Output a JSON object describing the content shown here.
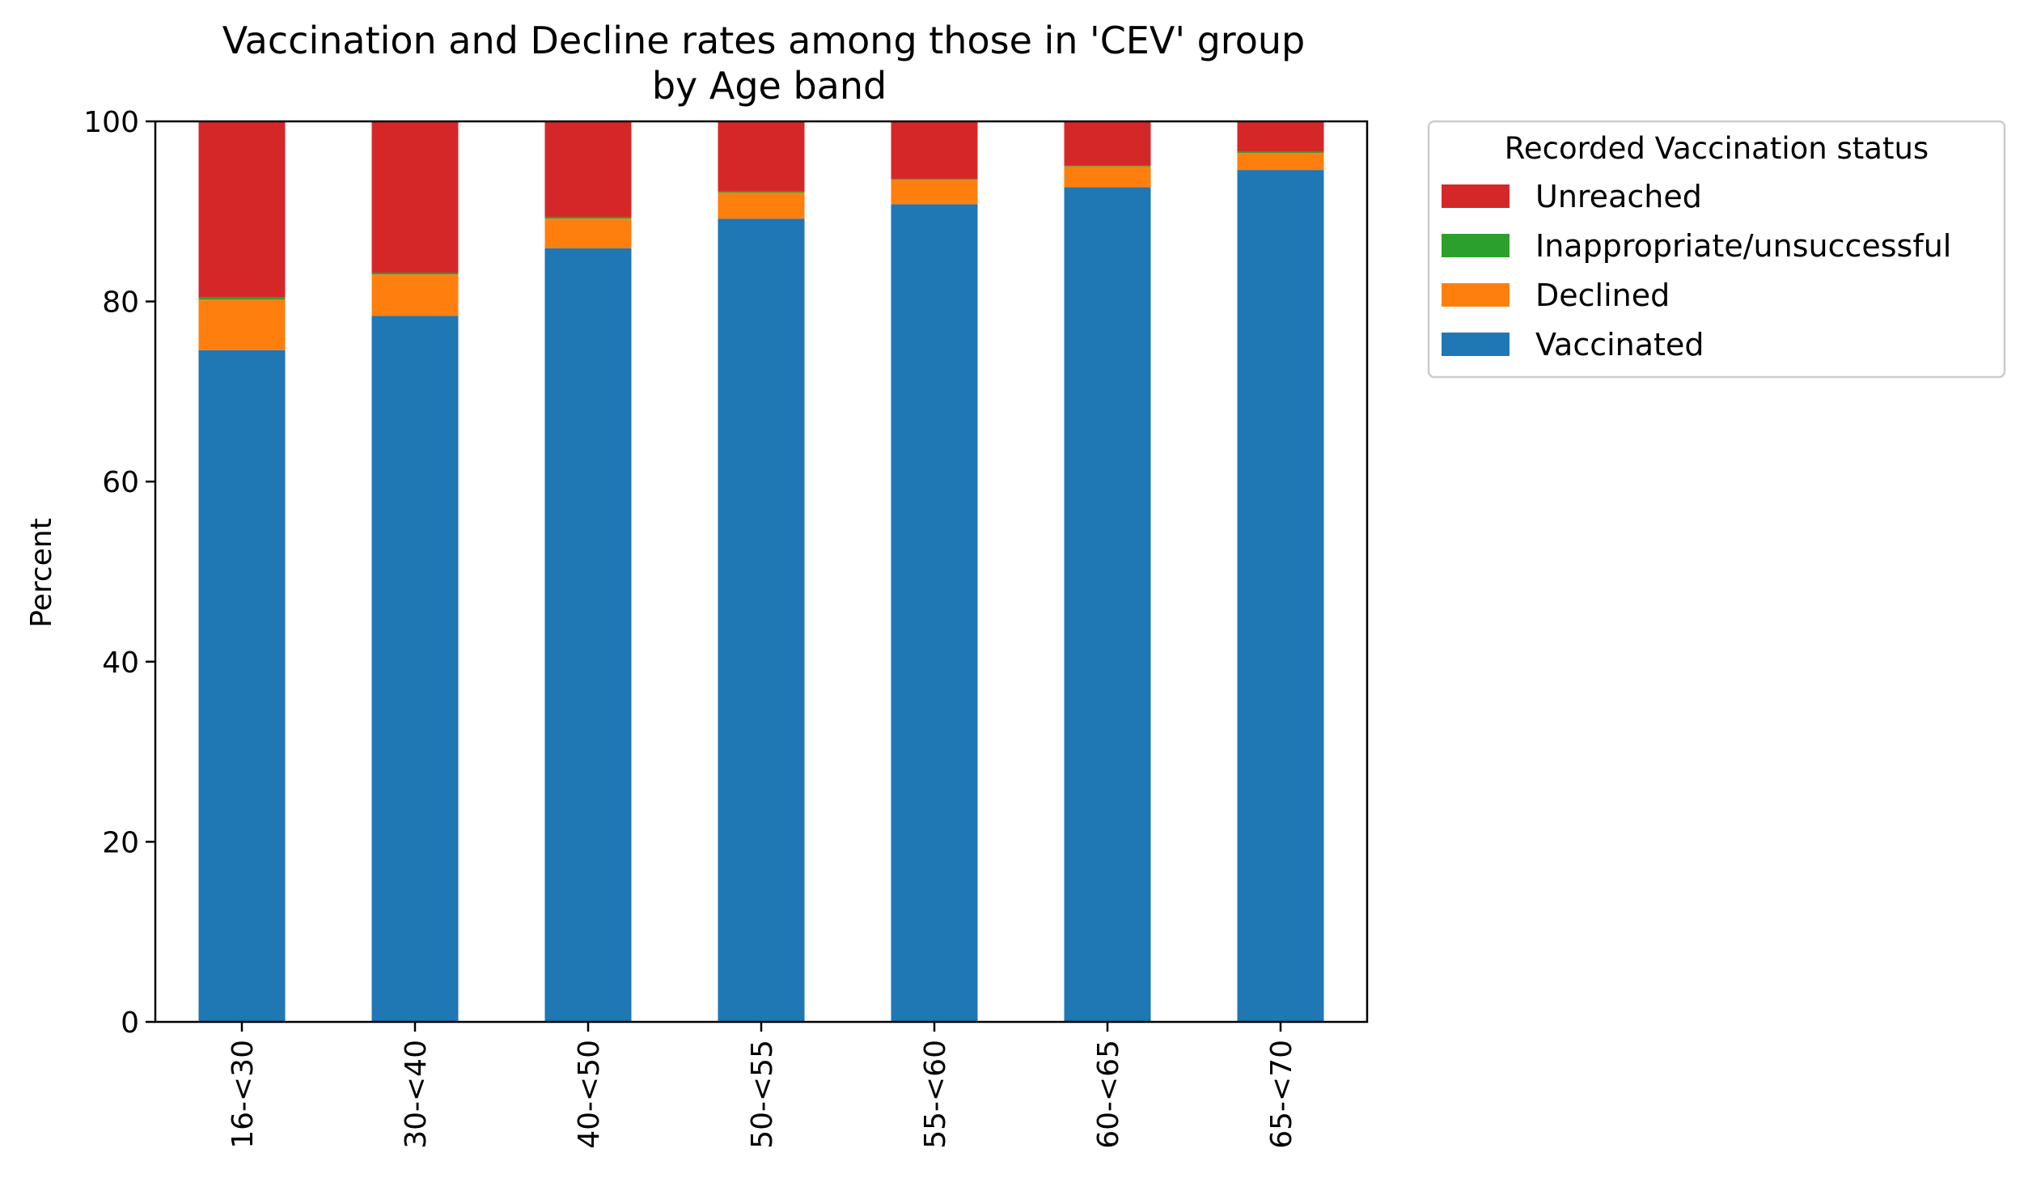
{
  "chart_data": {
    "type": "bar",
    "stacked": true,
    "title": "Vaccination and Decline rates among those in 'CEV' group",
    "subtitle": "by Age band",
    "xlabel": "",
    "ylabel": "Percent",
    "ylim": [
      0,
      100
    ],
    "yticks": [
      0,
      20,
      40,
      60,
      80,
      100
    ],
    "grid": false,
    "categories": [
      "16-<30",
      "30-<40",
      "40-<50",
      "50-<55",
      "55-<60",
      "60-<65",
      "65-<70"
    ],
    "series": [
      {
        "name": "Vaccinated",
        "color": "#1f77b4",
        "values": [
          74.6,
          78.4,
          85.9,
          89.2,
          90.8,
          92.7,
          94.6
        ]
      },
      {
        "name": "Declined",
        "color": "#ff7f0e",
        "values": [
          5.6,
          4.6,
          3.3,
          2.9,
          2.7,
          2.3,
          1.9
        ]
      },
      {
        "name": "Inappropriate/unsuccessful",
        "color": "#2ca02c",
        "values": [
          0.3,
          0.2,
          0.2,
          0.1,
          0.1,
          0.1,
          0.1
        ]
      },
      {
        "name": "Unreached",
        "color": "#d62728",
        "values": [
          19.5,
          16.8,
          10.6,
          7.8,
          6.4,
          4.9,
          3.4
        ]
      }
    ],
    "legend": {
      "title": "Recorded Vaccination status",
      "placement": "outside-top-right",
      "order": [
        "Unreached",
        "Inappropriate/unsuccessful",
        "Declined",
        "Vaccinated"
      ]
    }
  }
}
